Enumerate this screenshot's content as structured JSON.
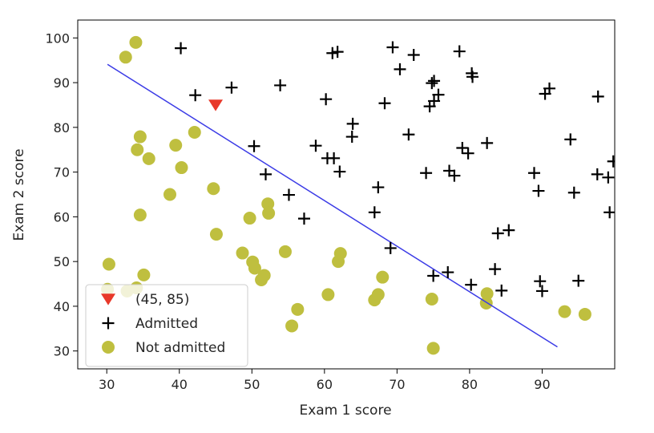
{
  "chart_data": {
    "type": "scatter",
    "title": "",
    "xlabel": "Exam 1 score",
    "ylabel": "Exam 2 score",
    "xlim": [
      26,
      100
    ],
    "ylim": [
      26,
      104
    ],
    "xticks": [
      30,
      40,
      50,
      60,
      70,
      80,
      90
    ],
    "yticks": [
      30,
      40,
      50,
      60,
      70,
      80,
      90,
      100
    ],
    "grid": false,
    "legend_position": "lower-left",
    "series": [
      {
        "name": "(45, 85)",
        "marker": "triangle-down",
        "color": "#e8392a",
        "points": [
          [
            45,
            85
          ]
        ]
      },
      {
        "name": "Admitted",
        "marker": "plus",
        "color": "#000000",
        "points": [
          [
            40.2,
            97.7
          ],
          [
            42.2,
            87.2
          ],
          [
            47.2,
            88.9
          ],
          [
            53.9,
            89.4
          ],
          [
            50.3,
            75.8
          ],
          [
            51.9,
            69.5
          ],
          [
            55.1,
            64.9
          ],
          [
            57.2,
            59.6
          ],
          [
            58.8,
            75.9
          ],
          [
            60.2,
            86.3
          ],
          [
            60.4,
            73.1
          ],
          [
            61.1,
            96.6
          ],
          [
            61.8,
            96.9
          ],
          [
            61.3,
            73.1
          ],
          [
            62.1,
            70.1
          ],
          [
            63.9,
            80.8
          ],
          [
            63.8,
            77.9
          ],
          [
            66.9,
            61.0
          ],
          [
            67.4,
            66.6
          ],
          [
            68.3,
            85.4
          ],
          [
            69.1,
            53.0
          ],
          [
            69.4,
            97.9
          ],
          [
            70.4,
            93.0
          ],
          [
            71.6,
            78.4
          ],
          [
            72.3,
            96.2
          ],
          [
            74.0,
            69.8
          ],
          [
            74.5,
            84.7
          ],
          [
            74.8,
            89.9
          ],
          [
            75.1,
            90.4
          ],
          [
            75.1,
            85.9
          ],
          [
            75.7,
            87.3
          ],
          [
            75.0,
            46.8
          ],
          [
            77.0,
            47.6
          ],
          [
            77.2,
            70.3
          ],
          [
            77.9,
            69.2
          ],
          [
            78.6,
            97.0
          ],
          [
            79.0,
            75.4
          ],
          [
            79.8,
            74.2
          ],
          [
            80.3,
            92.1
          ],
          [
            80.4,
            91.3
          ],
          [
            80.2,
            44.8
          ],
          [
            82.4,
            76.5
          ],
          [
            83.5,
            48.3
          ],
          [
            83.9,
            56.3
          ],
          [
            84.4,
            43.5
          ],
          [
            85.4,
            57.0
          ],
          [
            88.9,
            69.8
          ],
          [
            89.5,
            65.8
          ],
          [
            89.7,
            45.6
          ],
          [
            90.0,
            43.4
          ],
          [
            90.4,
            87.5
          ],
          [
            91.0,
            88.7
          ],
          [
            93.9,
            77.3
          ],
          [
            94.4,
            65.4
          ],
          [
            95.0,
            45.7
          ],
          [
            97.7,
            86.9
          ],
          [
            97.6,
            69.5
          ],
          [
            99.1,
            68.8
          ],
          [
            99.3,
            61.0
          ],
          [
            99.8,
            72.4
          ]
        ]
      },
      {
        "name": "Not admitted",
        "marker": "circle",
        "color": "#bfbf3f",
        "points": [
          [
            34.0,
            99.0
          ],
          [
            32.6,
            95.7
          ],
          [
            34.6,
            77.9
          ],
          [
            34.2,
            75.0
          ],
          [
            35.8,
            73.0
          ],
          [
            39.5,
            76.0
          ],
          [
            40.3,
            71.0
          ],
          [
            42.1,
            78.9
          ],
          [
            38.7,
            65.0
          ],
          [
            44.7,
            66.3
          ],
          [
            34.6,
            60.4
          ],
          [
            45.1,
            56.1
          ],
          [
            49.7,
            59.7
          ],
          [
            52.2,
            62.9
          ],
          [
            52.3,
            60.8
          ],
          [
            48.7,
            51.9
          ],
          [
            50.1,
            49.9
          ],
          [
            50.4,
            48.5
          ],
          [
            51.3,
            45.9
          ],
          [
            51.7,
            46.9
          ],
          [
            54.6,
            52.2
          ],
          [
            56.3,
            39.3
          ],
          [
            55.5,
            35.6
          ],
          [
            60.5,
            42.6
          ],
          [
            61.9,
            50.0
          ],
          [
            62.2,
            51.8
          ],
          [
            66.9,
            41.4
          ],
          [
            67.4,
            42.6
          ],
          [
            68.0,
            46.5
          ],
          [
            74.8,
            41.6
          ],
          [
            75.0,
            30.6
          ],
          [
            82.4,
            42.8
          ],
          [
            82.3,
            40.7
          ],
          [
            93.1,
            38.8
          ],
          [
            95.9,
            38.2
          ],
          [
            30.3,
            49.4
          ],
          [
            35.1,
            47.0
          ],
          [
            30.1,
            43.8
          ],
          [
            32.8,
            43.4
          ],
          [
            34.1,
            44.1
          ]
        ]
      },
      {
        "name": "",
        "marker": "line",
        "color": "#3b3be6",
        "points": [
          [
            30.1,
            94.1
          ],
          [
            92.1,
            30.9
          ]
        ]
      }
    ]
  }
}
